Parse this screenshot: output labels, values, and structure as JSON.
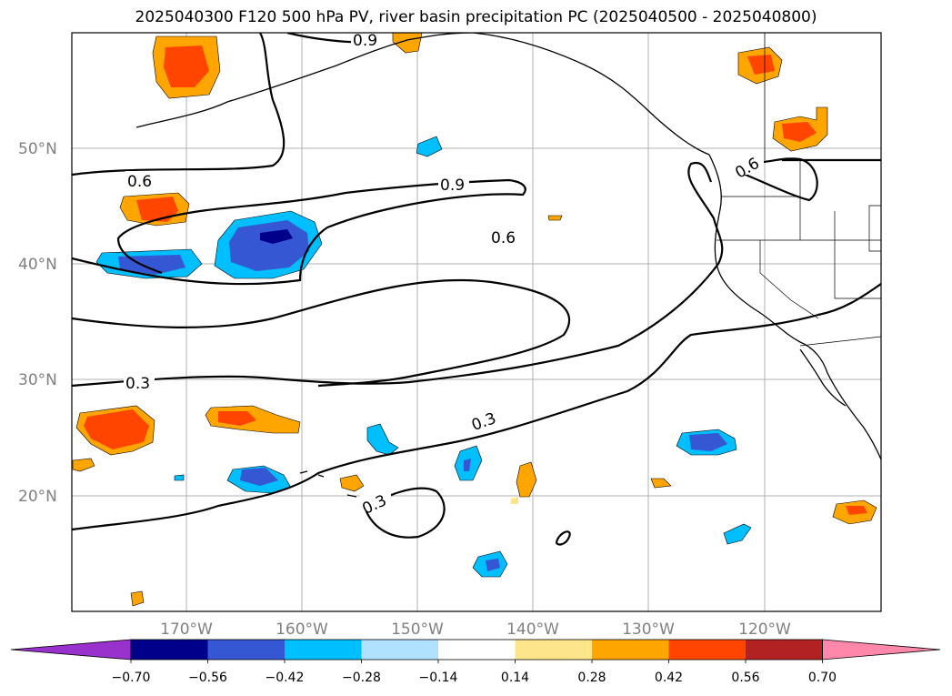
{
  "title": "2025040300 F120 500 hPa PV, river basin precipitation PC (2025040500 - 2025040800)",
  "map": {
    "lat_labels": [
      "50°N",
      "40°N",
      "30°N",
      "20°N"
    ],
    "lon_labels": [
      "170°W",
      "160°W",
      "150°W",
      "140°W",
      "130°W",
      "120°W"
    ],
    "contour_labels": [
      "0.6",
      "0.9",
      "0.6",
      "0.6",
      "0.3",
      "0.3",
      "0.3",
      "0.9"
    ]
  },
  "colorbar": {
    "ticks": [
      "−0.70",
      "−0.56",
      "−0.42",
      "−0.28",
      "−0.14",
      "0.14",
      "0.28",
      "0.42",
      "0.56",
      "0.70"
    ],
    "colors": [
      "#9932cc",
      "#00008b",
      "#3657d3",
      "#00bfff",
      "#b0e2ff",
      "#ffffff",
      "#fde68a",
      "#ffa500",
      "#ff4500",
      "#b22222",
      "#ff88aa"
    ]
  },
  "colors": {
    "orange": "#ffa500",
    "red_orange": "#ff4500",
    "light_yellow": "#fde68a",
    "sky_blue": "#00bfff",
    "royal_blue": "#3657d3",
    "navy": "#00008b",
    "pale_blue": "#b0e2ff"
  }
}
